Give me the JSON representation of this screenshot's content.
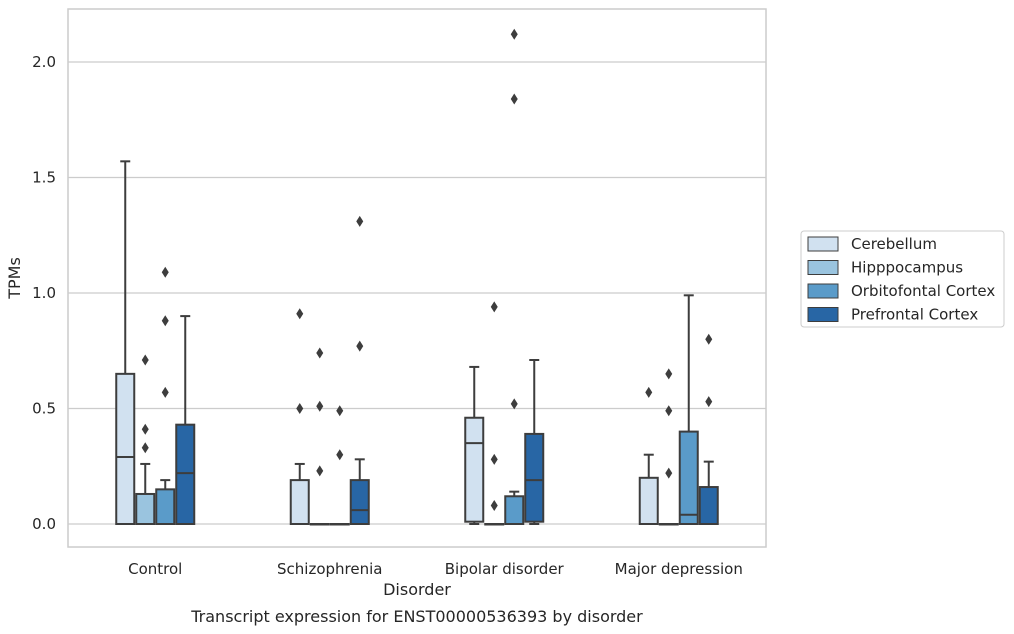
{
  "chart_data": {
    "type": "box",
    "xlabel": "Disorder",
    "ylabel": "TPMs",
    "caption": "Transcript expression for ENST00000536393 by disorder",
    "ylim": [
      -0.1,
      2.23
    ],
    "yticks": [
      0.0,
      0.5,
      1.0,
      1.5,
      2.0
    ],
    "ytick_labels": [
      "0.0",
      "0.5",
      "1.0",
      "1.5",
      "2.0"
    ],
    "grid": "horizontal",
    "legend_placement": "right",
    "categories": [
      "Control",
      "Schizophrenia",
      "Bipolar disorder",
      "Major depression"
    ],
    "series": [
      {
        "name": "Cerebellum",
        "color": "#d1e1f0",
        "boxes": [
          {
            "whislo": 0.0,
            "q1": 0.0,
            "med": 0.29,
            "q3": 0.65,
            "whishi": 1.57,
            "fliers": []
          },
          {
            "whislo": 0.0,
            "q1": 0.0,
            "med": 0.0,
            "q3": 0.19,
            "whishi": 0.26,
            "fliers": [
              0.5,
              0.91
            ]
          },
          {
            "whislo": 0.0,
            "q1": 0.01,
            "med": 0.35,
            "q3": 0.46,
            "whishi": 0.68,
            "fliers": []
          },
          {
            "whislo": 0.0,
            "q1": 0.0,
            "med": 0.0,
            "q3": 0.2,
            "whishi": 0.3,
            "fliers": [
              0.57
            ]
          }
        ]
      },
      {
        "name": "Hipppocampus",
        "color": "#9ac4df",
        "boxes": [
          {
            "whislo": 0.0,
            "q1": 0.0,
            "med": 0.0,
            "q3": 0.13,
            "whishi": 0.26,
            "fliers": [
              0.33,
              0.41,
              0.71
            ]
          },
          {
            "whislo": 0.0,
            "q1": 0.0,
            "med": 0.0,
            "q3": 0.0,
            "whishi": 0.0,
            "fliers": [
              0.23,
              0.51,
              0.74
            ]
          },
          {
            "whislo": 0.0,
            "q1": 0.0,
            "med": 0.0,
            "q3": 0.0,
            "whishi": 0.0,
            "fliers": [
              0.08,
              0.28,
              0.94
            ]
          },
          {
            "whislo": 0.0,
            "q1": 0.0,
            "med": 0.0,
            "q3": 0.0,
            "whishi": 0.0,
            "fliers": [
              0.22,
              0.49,
              0.65
            ]
          }
        ]
      },
      {
        "name": "Orbitofontal Cortex",
        "color": "#5a9bc9",
        "boxes": [
          {
            "whislo": 0.0,
            "q1": 0.0,
            "med": 0.0,
            "q3": 0.15,
            "whishi": 0.19,
            "fliers": [
              0.57,
              0.88,
              1.09
            ]
          },
          {
            "whislo": 0.0,
            "q1": 0.0,
            "med": 0.0,
            "q3": 0.0,
            "whishi": 0.0,
            "fliers": [
              0.3,
              0.49
            ]
          },
          {
            "whislo": 0.0,
            "q1": 0.0,
            "med": 0.0,
            "q3": 0.12,
            "whishi": 0.14,
            "fliers": [
              0.52,
              1.84,
              2.12
            ]
          },
          {
            "whislo": 0.0,
            "q1": 0.0,
            "med": 0.04,
            "q3": 0.4,
            "whishi": 0.99,
            "fliers": []
          }
        ]
      },
      {
        "name": "Prefrontal Cortex",
        "color": "#2866a5",
        "boxes": [
          {
            "whislo": 0.0,
            "q1": 0.0,
            "med": 0.22,
            "q3": 0.43,
            "whishi": 0.9,
            "fliers": []
          },
          {
            "whislo": 0.0,
            "q1": 0.0,
            "med": 0.06,
            "q3": 0.19,
            "whishi": 0.28,
            "fliers": [
              0.77,
              1.31
            ]
          },
          {
            "whislo": 0.0,
            "q1": 0.01,
            "med": 0.19,
            "q3": 0.39,
            "whishi": 0.71,
            "fliers": []
          },
          {
            "whislo": 0.0,
            "q1": 0.0,
            "med": 0.0,
            "q3": 0.16,
            "whishi": 0.27,
            "fliers": [
              0.53,
              0.8
            ]
          }
        ]
      }
    ]
  }
}
